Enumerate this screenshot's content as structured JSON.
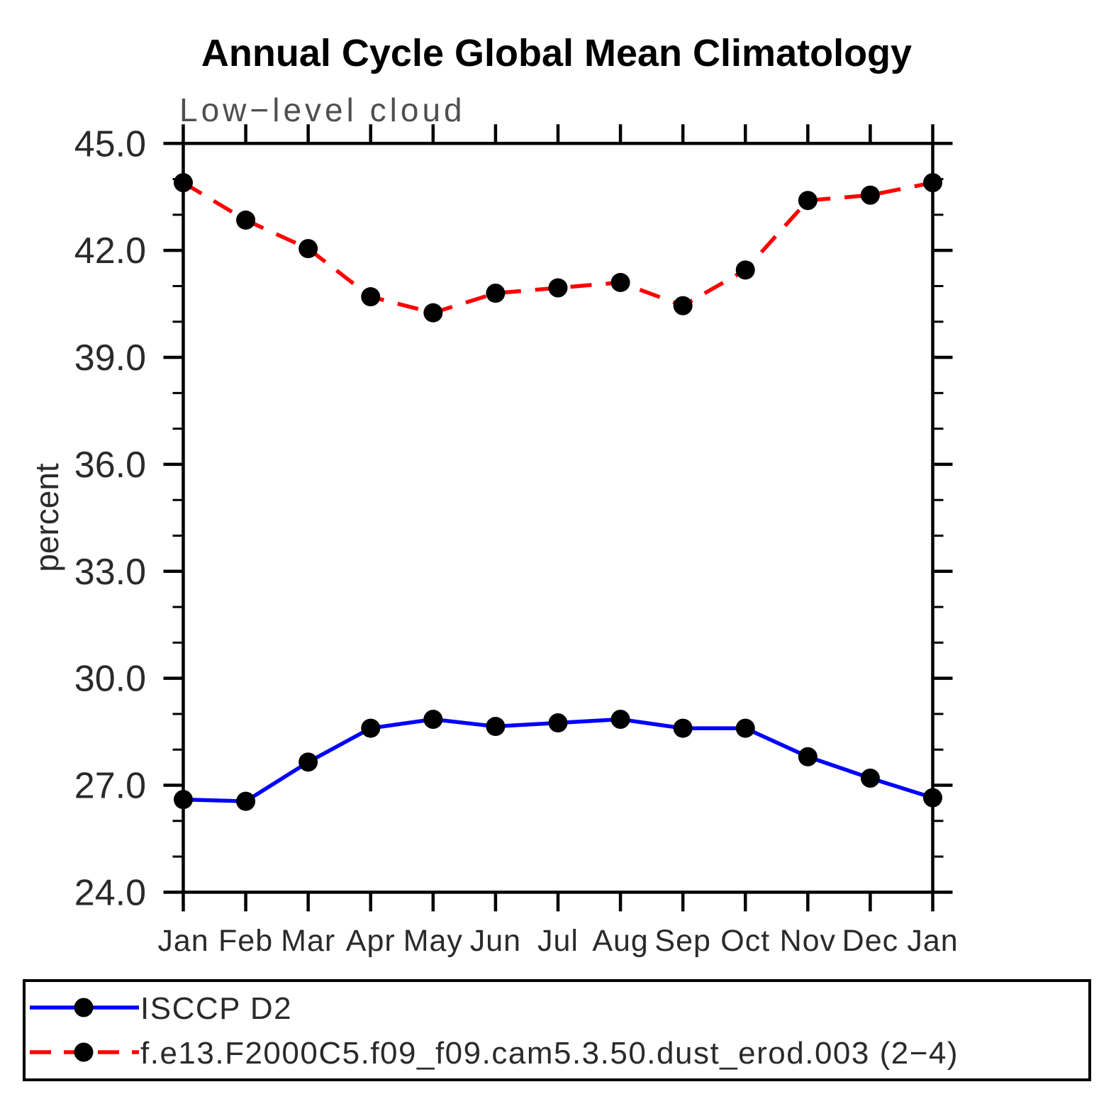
{
  "chart_data": {
    "type": "line",
    "title": "Annual Cycle Global Mean Climatology",
    "subtitle": "Low−level cloud",
    "xlabel": "",
    "ylabel": "percent",
    "x_categories": [
      "Jan",
      "Feb",
      "Mar",
      "Apr",
      "May",
      "Jun",
      "Jul",
      "Aug",
      "Sep",
      "Oct",
      "Nov",
      "Dec",
      "Jan"
    ],
    "ylim": [
      24.0,
      45.0
    ],
    "y_ticks_major": [
      45.0,
      42.0,
      39.0,
      36.0,
      33.0,
      30.0,
      27.0,
      24.0
    ],
    "y_tick_labels": [
      "45.0",
      "42.0",
      "39.0",
      "36.0",
      "33.0",
      "30.0",
      "27.0",
      "24.0"
    ],
    "y_minor_step": 1.0,
    "grid": false,
    "legend_position": "bottom-left-box",
    "series": [
      {
        "name": "ISCCP D2",
        "color": "#0000ff",
        "style": "solid",
        "marker": "circle",
        "marker_color": "#000000",
        "values": [
          26.6,
          26.55,
          27.65,
          28.6,
          28.85,
          28.65,
          28.75,
          28.85,
          28.6,
          28.6,
          27.8,
          27.2,
          26.65
        ]
      },
      {
        "name": "f.e13.F2000C5.f09_f09.cam5.3.50.dust_erod.003 (2−4)",
        "color": "#ff0000",
        "style": "dashed",
        "marker": "circle",
        "marker_color": "#000000",
        "values": [
          43.9,
          42.85,
          42.05,
          40.7,
          40.25,
          40.8,
          40.95,
          41.1,
          40.45,
          41.45,
          43.4,
          43.55,
          43.9
        ]
      }
    ]
  },
  "colors": {
    "background": "#ffffff",
    "axis": "#000000",
    "marker": "#000000",
    "series1": "#0000ff",
    "series2": "#ff0000",
    "subtitle_text": "#4f4f4f",
    "tick_text": "#2a2a2a"
  }
}
